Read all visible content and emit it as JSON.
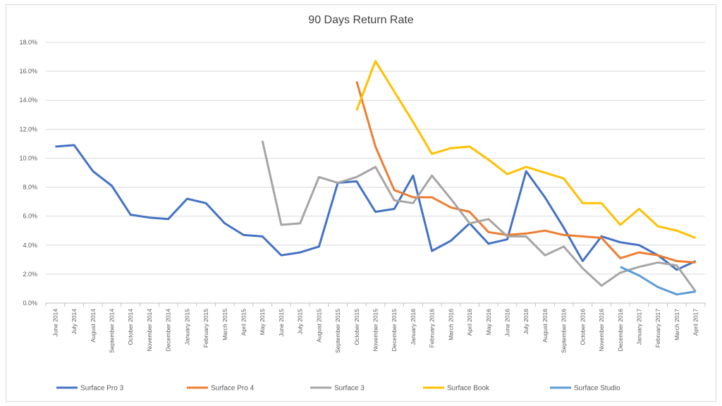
{
  "chart_data": {
    "type": "line",
    "title": "90 Days Return Rate",
    "xlabel": "",
    "ylabel": "",
    "ylim": [
      0,
      18
    ],
    "yticks": [
      "0.0%",
      "2.0%",
      "4.0%",
      "6.0%",
      "8.0%",
      "10.0%",
      "12.0%",
      "14.0%",
      "16.0%",
      "18.0%"
    ],
    "grid": true,
    "legend_position": "bottom",
    "categories": [
      "June 2014",
      "July 2014",
      "August 2014",
      "September 2014",
      "October 2014",
      "November 2014",
      "December 2014",
      "January 2015",
      "February 2015",
      "March 2015",
      "April 2015",
      "May 2015",
      "June 2015",
      "July 2015",
      "August 2015",
      "September 2015",
      "October 2015",
      "November 2015",
      "December 2015",
      "January 2016",
      "February 2016",
      "March 2016",
      "April 2016",
      "May 2016",
      "June 2016",
      "July 2016",
      "August 2016",
      "September 2016",
      "October 2016",
      "November 2016",
      "December 2016",
      "January 2017",
      "February 2017",
      "March 2017",
      "April 2017"
    ],
    "series": [
      {
        "name": "Surface Pro 3",
        "color": "#4472c4",
        "values": [
          10.8,
          10.9,
          9.1,
          8.1,
          6.1,
          5.9,
          5.8,
          7.2,
          6.9,
          5.5,
          4.7,
          4.6,
          3.3,
          3.5,
          3.9,
          8.3,
          8.4,
          6.3,
          6.5,
          8.8,
          3.6,
          4.3,
          5.5,
          4.1,
          4.4,
          9.1,
          7.3,
          5.2,
          2.9,
          4.6,
          4.2,
          4.0,
          3.3,
          2.3,
          2.9
        ]
      },
      {
        "name": "Surface Pro 4",
        "color": "#ed7d31",
        "values": [
          null,
          null,
          null,
          null,
          null,
          null,
          null,
          null,
          null,
          null,
          null,
          null,
          null,
          null,
          null,
          null,
          15.3,
          10.8,
          7.8,
          7.3,
          7.3,
          6.6,
          6.3,
          4.9,
          4.7,
          4.8,
          5.0,
          4.7,
          4.6,
          4.5,
          3.1,
          3.5,
          3.3,
          2.9,
          2.8
        ]
      },
      {
        "name": "Surface 3",
        "color": "#a5a5a5",
        "values": [
          null,
          null,
          null,
          null,
          null,
          null,
          null,
          null,
          null,
          null,
          null,
          11.2,
          5.4,
          5.5,
          8.7,
          8.3,
          8.7,
          9.4,
          7.1,
          6.9,
          8.8,
          7.2,
          5.5,
          5.8,
          4.6,
          4.6,
          3.3,
          3.9,
          2.4,
          1.2,
          2.1,
          2.5,
          2.8,
          2.6,
          0.8
        ]
      },
      {
        "name": "Surface Book",
        "color": "#ffc000",
        "values": [
          null,
          null,
          null,
          null,
          null,
          null,
          null,
          null,
          null,
          null,
          null,
          null,
          null,
          null,
          null,
          null,
          13.3,
          16.7,
          14.6,
          12.5,
          10.3,
          10.7,
          10.8,
          9.9,
          8.9,
          9.4,
          9.0,
          8.6,
          6.9,
          6.9,
          5.4,
          6.5,
          5.3,
          5.0,
          4.5
        ]
      },
      {
        "name": "Surface Studio",
        "color": "#5b9bd5",
        "values": [
          null,
          null,
          null,
          null,
          null,
          null,
          null,
          null,
          null,
          null,
          null,
          null,
          null,
          null,
          null,
          null,
          null,
          null,
          null,
          null,
          null,
          null,
          null,
          null,
          null,
          null,
          null,
          null,
          null,
          null,
          2.5,
          1.9,
          1.1,
          0.6,
          0.8
        ]
      }
    ]
  }
}
